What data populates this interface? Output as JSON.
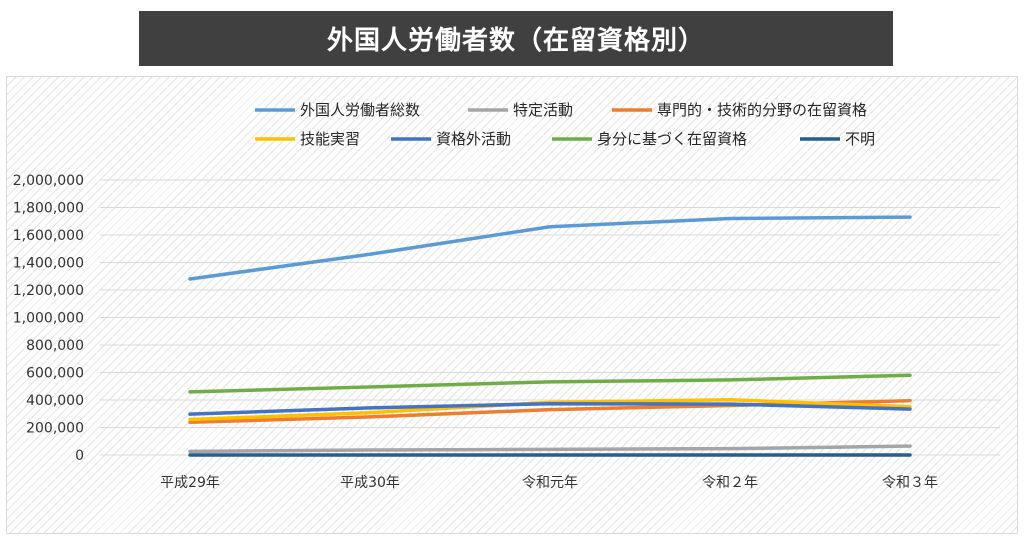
{
  "title": "外国人労働者数（在留資格別）",
  "chart_data": {
    "type": "line",
    "title": "外国人労働者数（在留資格別）",
    "categories": [
      "平成29年",
      "平成30年",
      "令和元年",
      "令和２年",
      "令和３年"
    ],
    "category_labels": [
      "平成29年",
      "平成30年",
      "令和元年",
      "令和２年",
      "令和３年"
    ],
    "ylim": [
      0,
      2000000
    ],
    "yticks": [
      0,
      200000,
      400000,
      600000,
      800000,
      1000000,
      1200000,
      1400000,
      1600000,
      1800000,
      2000000
    ],
    "ytick_labels": [
      "0",
      "200,000",
      "400,000",
      "600,000",
      "800,000",
      "1,000,000",
      "1,200,000",
      "1,400,000",
      "1,600,000",
      "1,800,000",
      "2,000,000"
    ],
    "grid": true,
    "legend_position": "top",
    "series": [
      {
        "name": "外国人労働者総数",
        "color": "#5b9bd5",
        "values": [
          1280000,
          1460000,
          1660000,
          1720000,
          1730000
        ]
      },
      {
        "name": "特定活動",
        "color": "#a5a5a5",
        "values": [
          26000,
          36000,
          41000,
          46000,
          65000
        ]
      },
      {
        "name": "専門的・技術的分野の在留資格",
        "color": "#ed7d31",
        "values": [
          238000,
          277000,
          330000,
          360000,
          395000
        ]
      },
      {
        "name": "技能実習",
        "color": "#ffc000",
        "values": [
          258000,
          308000,
          383000,
          402000,
          351000
        ]
      },
      {
        "name": "資格外活動",
        "color": "#4472c4",
        "values": [
          297000,
          343000,
          373000,
          370000,
          334000
        ]
      },
      {
        "name": "身分に基づく在留資格",
        "color": "#70ad47",
        "values": [
          459000,
          495000,
          532000,
          546000,
          580000
        ]
      },
      {
        "name": "不明",
        "color": "#255e91",
        "values": [
          12,
          11,
          11,
          11,
          11
        ]
      }
    ]
  }
}
